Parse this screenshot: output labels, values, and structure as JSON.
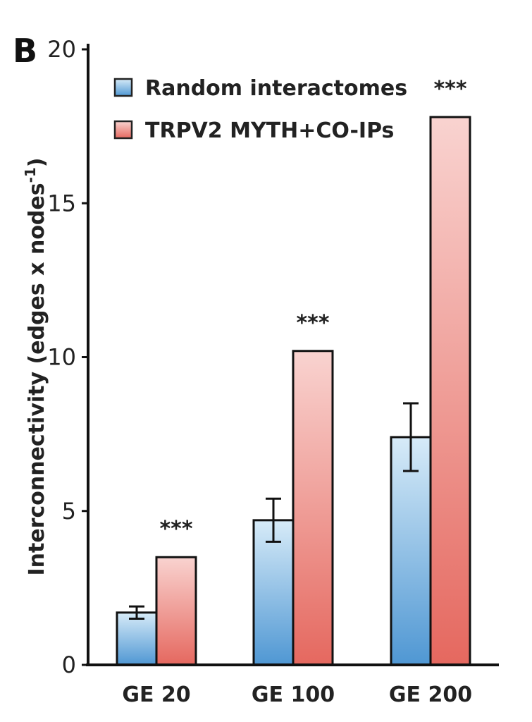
{
  "chart_data": {
    "type": "bar",
    "panel_label": "B",
    "ylabel": "Interconnectivity (edges x nodes -1)",
    "ylabel_main": "Interconnectivity (edges x nodes",
    "ylabel_sup": "-1",
    "ylabel_close": ")",
    "ylim": [
      0,
      20
    ],
    "yticks": [
      "0",
      "5",
      "10",
      "15",
      "20"
    ],
    "categories": [
      "GE 20",
      "GE 100",
      "GE 200"
    ],
    "legend_position": "top-left",
    "series": [
      {
        "name": "Random interactomes",
        "values": [
          1.7,
          4.7,
          7.4
        ],
        "errors": [
          0.2,
          0.7,
          1.1
        ],
        "color": "#5aa0d8"
      },
      {
        "name": "TRPV2 MYTH+CO-IPs",
        "values": [
          3.5,
          10.2,
          17.8
        ],
        "color": "#e8706a"
      }
    ],
    "significance": [
      "***",
      "***",
      "***"
    ],
    "grid": false
  }
}
